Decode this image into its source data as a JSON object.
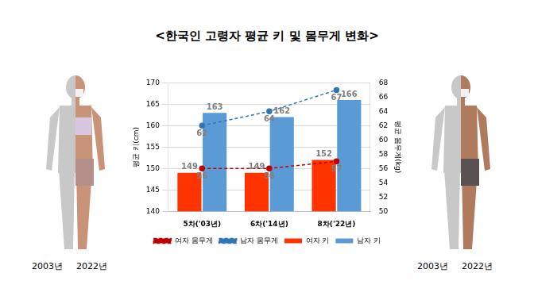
{
  "chart_data": {
    "type": "bar",
    "title": "<한국인 고령자 평균 키 및 몸무게 변화>",
    "categories": [
      "5차('03년)",
      "6차('14년)",
      "8차('22년)"
    ],
    "series": [
      {
        "name": "여자 키",
        "type": "bar",
        "color": "#ff3300",
        "values": [
          149,
          149,
          152
        ]
      },
      {
        "name": "남자 키",
        "type": "bar",
        "color": "#5b9bd5",
        "values": [
          163,
          162,
          166
        ]
      },
      {
        "name": "여자 몸무게",
        "type": "line",
        "axis": "y2",
        "color": "#c00000",
        "marker": "circle",
        "line_style": "dashed",
        "values": [
          56,
          56,
          57
        ]
      },
      {
        "name": "남자 몸무게",
        "type": "line",
        "axis": "y2",
        "color": "#2e75b6",
        "marker": "circle",
        "line_style": "dashed",
        "values": [
          62,
          64,
          67
        ]
      }
    ],
    "y_label": "평균 키(cm)",
    "y2_label": "평균 몸무게(kg)",
    "ylim": [
      140,
      170
    ],
    "yticks": [
      140,
      145,
      150,
      155,
      160,
      165,
      170
    ],
    "y2lim": [
      50,
      68
    ],
    "y2ticks": [
      50,
      52,
      54,
      56,
      58,
      60,
      62,
      64,
      66,
      68
    ],
    "grid": true,
    "legend": "bottom",
    "data_labels": true
  },
  "figures": [
    {
      "captions": [
        "2003년",
        "2022년"
      ]
    },
    {
      "captions": [
        "2003년",
        "2022년"
      ]
    }
  ]
}
